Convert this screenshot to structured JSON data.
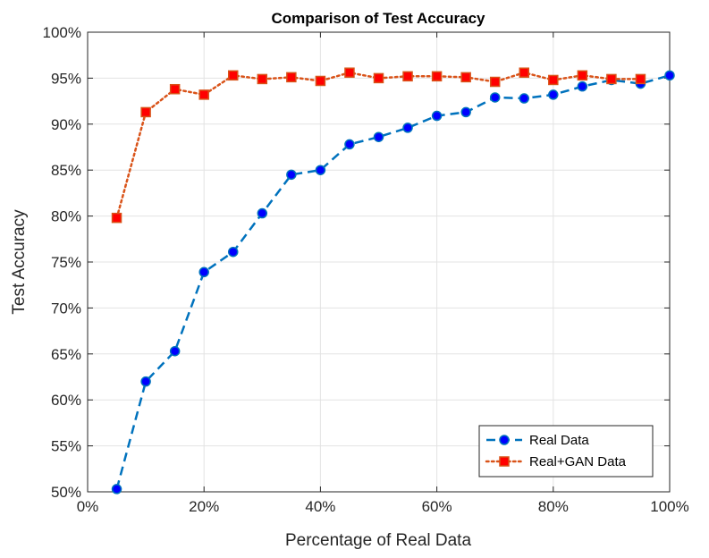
{
  "chart_data": {
    "type": "line",
    "title": "Comparison of Test Accuracy",
    "xlabel": "Percentage of Real Data",
    "ylabel": "Test Accuracy",
    "xlim": [
      0,
      100
    ],
    "ylim": [
      50,
      100
    ],
    "xticks": [
      0,
      20,
      40,
      60,
      80,
      100
    ],
    "yticks": [
      50,
      55,
      60,
      65,
      70,
      75,
      80,
      85,
      90,
      95,
      100
    ],
    "xtick_labels": [
      "0%",
      "20%",
      "40%",
      "60%",
      "80%",
      "100%"
    ],
    "ytick_labels": [
      "50%",
      "55%",
      "60%",
      "65%",
      "70%",
      "75%",
      "80%",
      "85%",
      "90%",
      "95%",
      "100%"
    ],
    "grid": true,
    "legend_position": "bottom-right",
    "x": [
      5,
      10,
      15,
      20,
      25,
      30,
      35,
      40,
      45,
      50,
      55,
      60,
      65,
      70,
      75,
      80,
      85,
      90,
      95,
      100
    ],
    "series": [
      {
        "name": "Real Data",
        "color": "#0072BD",
        "marker_color": "#0000FF",
        "line_style": "dashed",
        "marker": "circle",
        "values": [
          50.3,
          62.0,
          65.3,
          73.9,
          76.1,
          80.3,
          84.5,
          85.0,
          87.8,
          88.6,
          89.6,
          90.9,
          91.3,
          92.9,
          92.8,
          93.2,
          94.1,
          94.8,
          94.4,
          95.3
        ]
      },
      {
        "name": "Real+GAN Data",
        "color": "#D95319",
        "marker_color": "#FF0000",
        "line_style": "dotted",
        "marker": "square",
        "values": [
          79.8,
          91.3,
          93.8,
          93.2,
          95.3,
          94.9,
          95.1,
          94.7,
          95.6,
          95.0,
          95.2,
          95.2,
          95.1,
          94.6,
          95.6,
          94.8,
          95.3,
          94.9,
          94.9,
          null
        ]
      }
    ]
  }
}
